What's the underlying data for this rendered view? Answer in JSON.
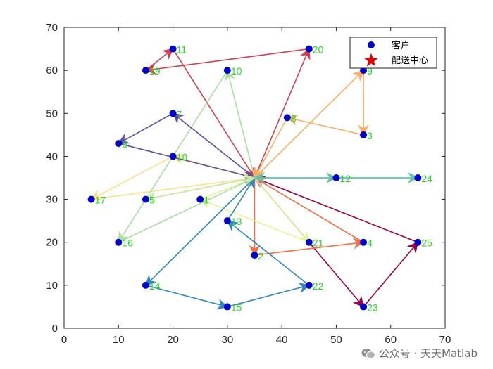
{
  "chart_data": {
    "type": "scatter",
    "xlim": [
      0,
      70
    ],
    "ylim": [
      0,
      70
    ],
    "xticks": [
      "0",
      "10",
      "20",
      "30",
      "40",
      "50",
      "60",
      "70"
    ],
    "yticks": [
      "0",
      "10",
      "20",
      "30",
      "40",
      "50",
      "60",
      "70"
    ],
    "grid": false,
    "legend_position": "top-right",
    "legend": [
      {
        "label": "客户",
        "marker": "circle",
        "color": "#0000cd"
      },
      {
        "label": "配送中心",
        "marker": "star",
        "color": "#e00000"
      }
    ],
    "depot": {
      "x": 35,
      "y": 35
    },
    "customers": [
      {
        "label": "1",
        "x": 25,
        "y": 30
      },
      {
        "label": "2",
        "x": 35,
        "y": 17
      },
      {
        "label": "3",
        "x": 55,
        "y": 45
      },
      {
        "label": "4",
        "x": 55,
        "y": 20
      },
      {
        "label": "5",
        "x": 15,
        "y": 30
      },
      {
        "label": "6",
        "x": 10,
        "y": 43
      },
      {
        "label": "7",
        "x": 20,
        "y": 50
      },
      {
        "label": "8",
        "x": 41,
        "y": 49
      },
      {
        "label": "9",
        "x": 55,
        "y": 60
      },
      {
        "label": "10",
        "x": 30,
        "y": 60
      },
      {
        "label": "11",
        "x": 20,
        "y": 65
      },
      {
        "label": "12",
        "x": 50,
        "y": 35
      },
      {
        "label": "13",
        "x": 30,
        "y": 25
      },
      {
        "label": "14",
        "x": 15,
        "y": 10
      },
      {
        "label": "15",
        "x": 30,
        "y": 5
      },
      {
        "label": "16",
        "x": 10,
        "y": 20
      },
      {
        "label": "17",
        "x": 5,
        "y": 30
      },
      {
        "label": "18",
        "x": 20,
        "y": 40
      },
      {
        "label": "19",
        "x": 15,
        "y": 60
      },
      {
        "label": "20",
        "x": 45,
        "y": 65
      },
      {
        "label": "21",
        "x": 45,
        "y": 20
      },
      {
        "label": "22",
        "x": 45,
        "y": 10
      },
      {
        "label": "23",
        "x": 55,
        "y": 5
      },
      {
        "label": "24",
        "x": 65,
        "y": 35
      },
      {
        "label": "25",
        "x": 65,
        "y": 20
      }
    ],
    "routes": [
      {
        "color": "#9e0142",
        "stops": [
          "depot",
          "23",
          "25",
          "depot"
        ]
      },
      {
        "color": "#d53e4f",
        "stops": [
          "depot",
          "20",
          "19",
          "11",
          "depot"
        ]
      },
      {
        "color": "#f46d43",
        "stops": [
          "depot",
          "2",
          "4",
          "depot"
        ]
      },
      {
        "color": "#fdae61",
        "stops": [
          "depot",
          "9",
          "3",
          "8",
          "depot"
        ]
      },
      {
        "color": "#fee08b",
        "stops": [
          "depot",
          "18",
          "17",
          "depot"
        ]
      },
      {
        "color": "#e6f598",
        "stops": [
          "depot",
          "21",
          "1",
          "depot"
        ]
      },
      {
        "color": "#abdda4",
        "stops": [
          "depot",
          "10",
          "16",
          "depot"
        ]
      },
      {
        "color": "#66c2a5",
        "stops": [
          "depot",
          "12",
          "24",
          "depot"
        ]
      },
      {
        "color": "#3288bd",
        "stops": [
          "depot",
          "14",
          "15",
          "22",
          "13",
          "depot"
        ]
      },
      {
        "color": "#5e4fa2",
        "stops": [
          "depot",
          "7",
          "6",
          "depot"
        ]
      },
      {
        "color": "#c6e8a0",
        "stops": [
          "depot",
          "5",
          "depot"
        ]
      }
    ]
  },
  "watermark": {
    "text": "公众号 · 天天Matlab"
  },
  "colors": {
    "customer_marker": "#0000cd",
    "depot_marker": "#e00000",
    "point_label": "#22dd22"
  }
}
